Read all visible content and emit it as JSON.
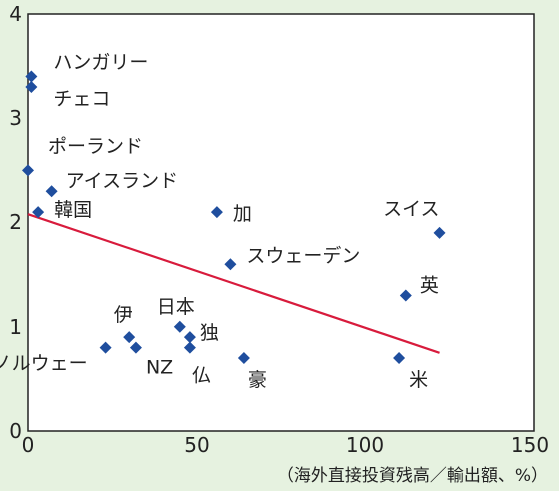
{
  "chart_data": {
    "type": "scatter",
    "title": "",
    "xlabel": "（海外直接投資残高／輸出額、%）",
    "ylabel": "",
    "xlim": [
      0,
      150
    ],
    "ylim": [
      0,
      4
    ],
    "x_ticks": [
      "0",
      "50",
      "100",
      "150"
    ],
    "y_ticks": [
      "0",
      "1",
      "2",
      "3",
      "4"
    ],
    "grid": false,
    "marker_color": "#1f4e9e",
    "trend_color": "#d81b3c",
    "background": "#e6f2e0",
    "points": [
      {
        "label": "ハンガリー",
        "x": 1,
        "y": 3.4
      },
      {
        "label": "チェコ",
        "x": 1,
        "y": 3.3
      },
      {
        "label": "ポーランド",
        "x": 0,
        "y": 2.5
      },
      {
        "label": "アイスランド",
        "x": 7,
        "y": 2.3
      },
      {
        "label": "韓国",
        "x": 3,
        "y": 2.1
      },
      {
        "label": "加",
        "x": 56,
        "y": 2.1
      },
      {
        "label": "スイス",
        "x": 122,
        "y": 1.9
      },
      {
        "label": "スウェーデン",
        "x": 60,
        "y": 1.6
      },
      {
        "label": "英",
        "x": 112,
        "y": 1.3
      },
      {
        "label": "日本",
        "x": 45,
        "y": 1.0
      },
      {
        "label": "独",
        "x": 48,
        "y": 0.9
      },
      {
        "label": "伊",
        "x": 30,
        "y": 0.9
      },
      {
        "label": "NZ",
        "x": 32,
        "y": 0.8
      },
      {
        "label": "仏",
        "x": 48,
        "y": 0.8
      },
      {
        "label": "ノルウェー",
        "x": 23,
        "y": 0.8
      },
      {
        "label": "豪",
        "x": 64,
        "y": 0.7
      },
      {
        "label": "米",
        "x": 110,
        "y": 0.7
      }
    ],
    "trendline": {
      "x": [
        0,
        122
      ],
      "y": [
        2.08,
        0.75
      ]
    }
  }
}
